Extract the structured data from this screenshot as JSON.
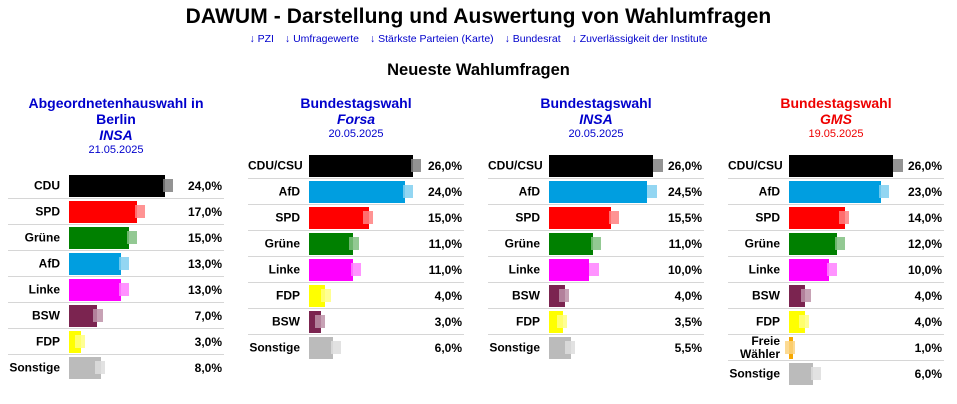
{
  "site": {
    "title": "DAWUM - Darstellung und Auswertung von Wahlumfragen",
    "nav": [
      "↓ PZI",
      "↓ Umfragewerte",
      "↓ Stärkste Parteien (Karte)",
      "↓ Bundesrat",
      "↓ Zuverlässigkeit der Institute"
    ],
    "section_title": "Neueste Wahlumfragen"
  },
  "colors": {
    "link": "#0000cc",
    "highlight": "#ee0000",
    "CDU": "#000000",
    "CDU/CSU": "#000000",
    "SPD": "#ff0000",
    "Grüne": "#008000",
    "AfD": "#009ee0",
    "Linke": "#ff00ff",
    "BSW": "#7b2450",
    "FDP": "#ffff00",
    "Freie Wähler": "#f7a800",
    "Sonstige": "#bbbbbb"
  },
  "chart_data": [
    {
      "type": "bar",
      "orientation": "horizontal",
      "election": "Abgeordnetenhauswahl in Berlin",
      "institute": "INSA",
      "date": "21.05.2025",
      "categories": [
        "CDU",
        "SPD",
        "Grüne",
        "AfD",
        "Linke",
        "BSW",
        "FDP",
        "Sonstige"
      ],
      "values": [
        24.0,
        17.0,
        15.0,
        13.0,
        13.0,
        7.0,
        3.0,
        8.0
      ],
      "value_labels": [
        "24,0%",
        "17,0%",
        "15,0%",
        "13,0%",
        "13,0%",
        "7,0%",
        "3,0%",
        "8,0%"
      ],
      "previous": [
        26.0,
        19.0,
        17.0,
        15.0,
        15.0,
        8.5,
        4.0,
        9.0
      ],
      "xlim": [
        0,
        30
      ],
      "highlight": false
    },
    {
      "type": "bar",
      "orientation": "horizontal",
      "election": "Bundestagswahl",
      "institute": "Forsa",
      "date": "20.05.2025",
      "categories": [
        "CDU/CSU",
        "AfD",
        "SPD",
        "Grüne",
        "Linke",
        "FDP",
        "BSW",
        "Sonstige"
      ],
      "values": [
        26.0,
        24.0,
        15.0,
        11.0,
        11.0,
        4.0,
        3.0,
        6.0
      ],
      "value_labels": [
        "26,0%",
        "24,0%",
        "15,0%",
        "11,0%",
        "11,0%",
        "4,0%",
        "3,0%",
        "6,0%"
      ],
      "previous": [
        28.0,
        26.0,
        16.0,
        12.5,
        13.0,
        5.5,
        4.0,
        8.0
      ],
      "xlim": [
        0,
        30
      ],
      "highlight": false
    },
    {
      "type": "bar",
      "orientation": "horizontal",
      "election": "Bundestagswahl",
      "institute": "INSA",
      "date": "20.05.2025",
      "categories": [
        "CDU/CSU",
        "AfD",
        "SPD",
        "Grüne",
        "Linke",
        "BSW",
        "FDP",
        "Sonstige"
      ],
      "values": [
        26.0,
        24.5,
        15.5,
        11.0,
        10.0,
        4.0,
        3.5,
        5.5
      ],
      "value_labels": [
        "26,0%",
        "24,5%",
        "15,5%",
        "11,0%",
        "10,0%",
        "4,0%",
        "3,5%",
        "5,5%"
      ],
      "previous": [
        28.5,
        27.0,
        17.5,
        13.0,
        12.5,
        5.0,
        4.5,
        6.5
      ],
      "xlim": [
        0,
        30
      ],
      "highlight": false
    },
    {
      "type": "bar",
      "orientation": "horizontal",
      "election": "Bundestagswahl",
      "institute": "GMS",
      "date": "19.05.2025",
      "categories": [
        "CDU/CSU",
        "AfD",
        "SPD",
        "Grüne",
        "Linke",
        "BSW",
        "FDP",
        "Freie Wähler",
        "Sonstige"
      ],
      "values": [
        26.0,
        23.0,
        14.0,
        12.0,
        10.0,
        4.0,
        4.0,
        1.0,
        6.0
      ],
      "value_labels": [
        "26,0%",
        "23,0%",
        "14,0%",
        "12,0%",
        "10,0%",
        "4,0%",
        "4,0%",
        "1,0%",
        "6,0%"
      ],
      "previous": [
        28.5,
        25.0,
        15.0,
        14.0,
        12.0,
        5.5,
        5.0,
        1.5,
        8.0
      ],
      "xlim": [
        0,
        30
      ],
      "highlight": true
    }
  ]
}
